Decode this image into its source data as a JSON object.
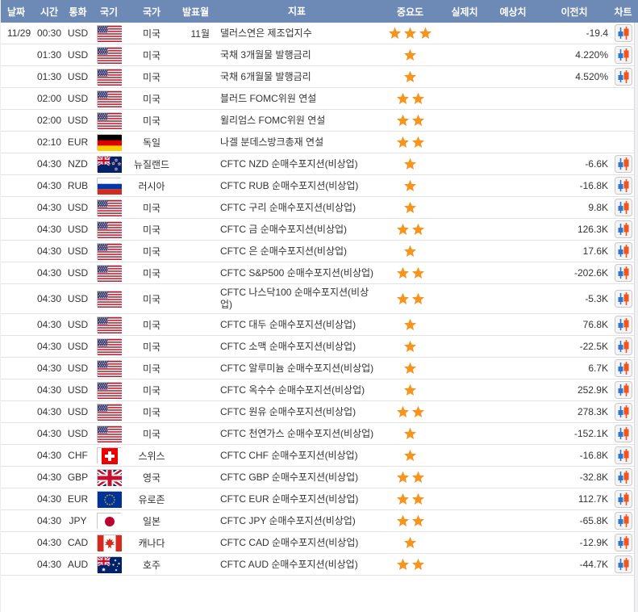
{
  "columns": [
    {
      "key": "date",
      "label": "날짜"
    },
    {
      "key": "time",
      "label": "시간"
    },
    {
      "key": "cur",
      "label": "통화"
    },
    {
      "key": "flag",
      "label": "국기"
    },
    {
      "key": "country",
      "label": "국가"
    },
    {
      "key": "month",
      "label": "발표월"
    },
    {
      "key": "ind",
      "label": "지표"
    },
    {
      "key": "imp",
      "label": "중요도"
    },
    {
      "key": "act",
      "label": "실제치"
    },
    {
      "key": "for",
      "label": "예상치"
    },
    {
      "key": "prev",
      "label": "이전치"
    },
    {
      "key": "chart",
      "label": "차트"
    }
  ],
  "colors": {
    "header_bg": "#6d89b6",
    "header_text": "#ffffff",
    "row_border": "#e3e3e6",
    "text": "#333333",
    "star": "#f7941e",
    "candle_blue": "#2d77cc",
    "candle_orange": "#f0551f",
    "chart_icon_bg": "#f4f4f4",
    "chart_icon_border": "#c9c9c9"
  },
  "rows": [
    {
      "date": "11/29",
      "time": "00:30",
      "cur": "USD",
      "flag": "us",
      "country": "미국",
      "month": "11월",
      "ind": "댈러스연은 제조업지수",
      "imp": 3,
      "act": "",
      "for": "",
      "prev": "-19.4",
      "chart": true
    },
    {
      "date": "",
      "time": "01:30",
      "cur": "USD",
      "flag": "us",
      "country": "미국",
      "month": "",
      "ind": "국채 3개월물 발행금리",
      "imp": 1,
      "act": "",
      "for": "",
      "prev": "4.220%",
      "chart": true
    },
    {
      "date": "",
      "time": "01:30",
      "cur": "USD",
      "flag": "us",
      "country": "미국",
      "month": "",
      "ind": "국채 6개월물 발행금리",
      "imp": 1,
      "act": "",
      "for": "",
      "prev": "4.520%",
      "chart": true
    },
    {
      "date": "",
      "time": "02:00",
      "cur": "USD",
      "flag": "us",
      "country": "미국",
      "month": "",
      "ind": "블러드 FOMC위원 연설",
      "imp": 2,
      "act": "",
      "for": "",
      "prev": "",
      "chart": false
    },
    {
      "date": "",
      "time": "02:00",
      "cur": "USD",
      "flag": "us",
      "country": "미국",
      "month": "",
      "ind": "윌리엄스 FOMC위원 연설",
      "imp": 2,
      "act": "",
      "for": "",
      "prev": "",
      "chart": false
    },
    {
      "date": "",
      "time": "02:10",
      "cur": "EUR",
      "flag": "de",
      "country": "독일",
      "month": "",
      "ind": "나겔 분데스방크총재 연설",
      "imp": 2,
      "act": "",
      "for": "",
      "prev": "",
      "chart": false
    },
    {
      "date": "",
      "time": "04:30",
      "cur": "NZD",
      "flag": "nz",
      "country": "뉴질랜드",
      "month": "",
      "ind": "CFTC NZD 순매수포지션(비상업)",
      "imp": 1,
      "act": "",
      "for": "",
      "prev": "-6.6K",
      "chart": true
    },
    {
      "date": "",
      "time": "04:30",
      "cur": "RUB",
      "flag": "ru",
      "country": "러시아",
      "month": "",
      "ind": "CFTC RUB 순매수포지션(비상업)",
      "imp": 1,
      "act": "",
      "for": "",
      "prev": "-16.8K",
      "chart": true
    },
    {
      "date": "",
      "time": "04:30",
      "cur": "USD",
      "flag": "us",
      "country": "미국",
      "month": "",
      "ind": "CFTC 구리 순매수포지션(비상업)",
      "imp": 1,
      "act": "",
      "for": "",
      "prev": "9.8K",
      "chart": true
    },
    {
      "date": "",
      "time": "04:30",
      "cur": "USD",
      "flag": "us",
      "country": "미국",
      "month": "",
      "ind": "CFTC 금 순매수포지션(비상업)",
      "imp": 2,
      "act": "",
      "for": "",
      "prev": "126.3K",
      "chart": true
    },
    {
      "date": "",
      "time": "04:30",
      "cur": "USD",
      "flag": "us",
      "country": "미국",
      "month": "",
      "ind": "CFTC 은 순매수포지션(비상업)",
      "imp": 1,
      "act": "",
      "for": "",
      "prev": "17.6K",
      "chart": true
    },
    {
      "date": "",
      "time": "04:30",
      "cur": "USD",
      "flag": "us",
      "country": "미국",
      "month": "",
      "ind": "CFTC S&P500 순매수포지션(비상업)",
      "imp": 2,
      "act": "",
      "for": "",
      "prev": "-202.6K",
      "chart": true
    },
    {
      "date": "",
      "time": "04:30",
      "cur": "USD",
      "flag": "us",
      "country": "미국",
      "month": "",
      "ind": "CFTC 나스닥100 순매수포지션(비상업)",
      "imp": 2,
      "act": "",
      "for": "",
      "prev": "-5.3K",
      "chart": true
    },
    {
      "date": "",
      "time": "04:30",
      "cur": "USD",
      "flag": "us",
      "country": "미국",
      "month": "",
      "ind": "CFTC 대두 순매수포지션(비상업)",
      "imp": 1,
      "act": "",
      "for": "",
      "prev": "76.8K",
      "chart": true
    },
    {
      "date": "",
      "time": "04:30",
      "cur": "USD",
      "flag": "us",
      "country": "미국",
      "month": "",
      "ind": "CFTC 소맥 순매수포지션(비상업)",
      "imp": 1,
      "act": "",
      "for": "",
      "prev": "-22.5K",
      "chart": true
    },
    {
      "date": "",
      "time": "04:30",
      "cur": "USD",
      "flag": "us",
      "country": "미국",
      "month": "",
      "ind": "CFTC 알루미늄 순매수포지션(비상업)",
      "imp": 1,
      "act": "",
      "for": "",
      "prev": "6.7K",
      "chart": true
    },
    {
      "date": "",
      "time": "04:30",
      "cur": "USD",
      "flag": "us",
      "country": "미국",
      "month": "",
      "ind": "CFTC 옥수수 순매수포지션(비상업)",
      "imp": 1,
      "act": "",
      "for": "",
      "prev": "252.9K",
      "chart": true
    },
    {
      "date": "",
      "time": "04:30",
      "cur": "USD",
      "flag": "us",
      "country": "미국",
      "month": "",
      "ind": "CFTC 원유 순매수포지션(비상업)",
      "imp": 2,
      "act": "",
      "for": "",
      "prev": "278.3K",
      "chart": true
    },
    {
      "date": "",
      "time": "04:30",
      "cur": "USD",
      "flag": "us",
      "country": "미국",
      "month": "",
      "ind": "CFTC 천연가스 순매수포지션(비상업)",
      "imp": 1,
      "act": "",
      "for": "",
      "prev": "-152.1K",
      "chart": true
    },
    {
      "date": "",
      "time": "04:30",
      "cur": "CHF",
      "flag": "ch",
      "country": "스위스",
      "month": "",
      "ind": "CFTC CHF 순매수포지션(비상업)",
      "imp": 1,
      "act": "",
      "for": "",
      "prev": "-16.8K",
      "chart": true
    },
    {
      "date": "",
      "time": "04:30",
      "cur": "GBP",
      "flag": "gb",
      "country": "영국",
      "month": "",
      "ind": "CFTC GBP 순매수포지션(비상업)",
      "imp": 2,
      "act": "",
      "for": "",
      "prev": "-32.8K",
      "chart": true
    },
    {
      "date": "",
      "time": "04:30",
      "cur": "EUR",
      "flag": "eu",
      "country": "유로존",
      "month": "",
      "ind": "CFTC EUR 순매수포지션(비상업)",
      "imp": 2,
      "act": "",
      "for": "",
      "prev": "112.7K",
      "chart": true
    },
    {
      "date": "",
      "time": "04:30",
      "cur": "JPY",
      "flag": "jp",
      "country": "일본",
      "month": "",
      "ind": "CFTC JPY 순매수포지션(비상업)",
      "imp": 2,
      "act": "",
      "for": "",
      "prev": "-65.8K",
      "chart": true
    },
    {
      "date": "",
      "time": "04:30",
      "cur": "CAD",
      "flag": "ca",
      "country": "캐나다",
      "month": "",
      "ind": "CFTC CAD 순매수포지션(비상업)",
      "imp": 1,
      "act": "",
      "for": "",
      "prev": "-12.9K",
      "chart": true
    },
    {
      "date": "",
      "time": "04:30",
      "cur": "AUD",
      "flag": "au",
      "country": "호주",
      "month": "",
      "ind": "CFTC AUD 순매수포지션(비상업)",
      "imp": 2,
      "act": "",
      "for": "",
      "prev": "-44.7K",
      "chart": true
    }
  ]
}
